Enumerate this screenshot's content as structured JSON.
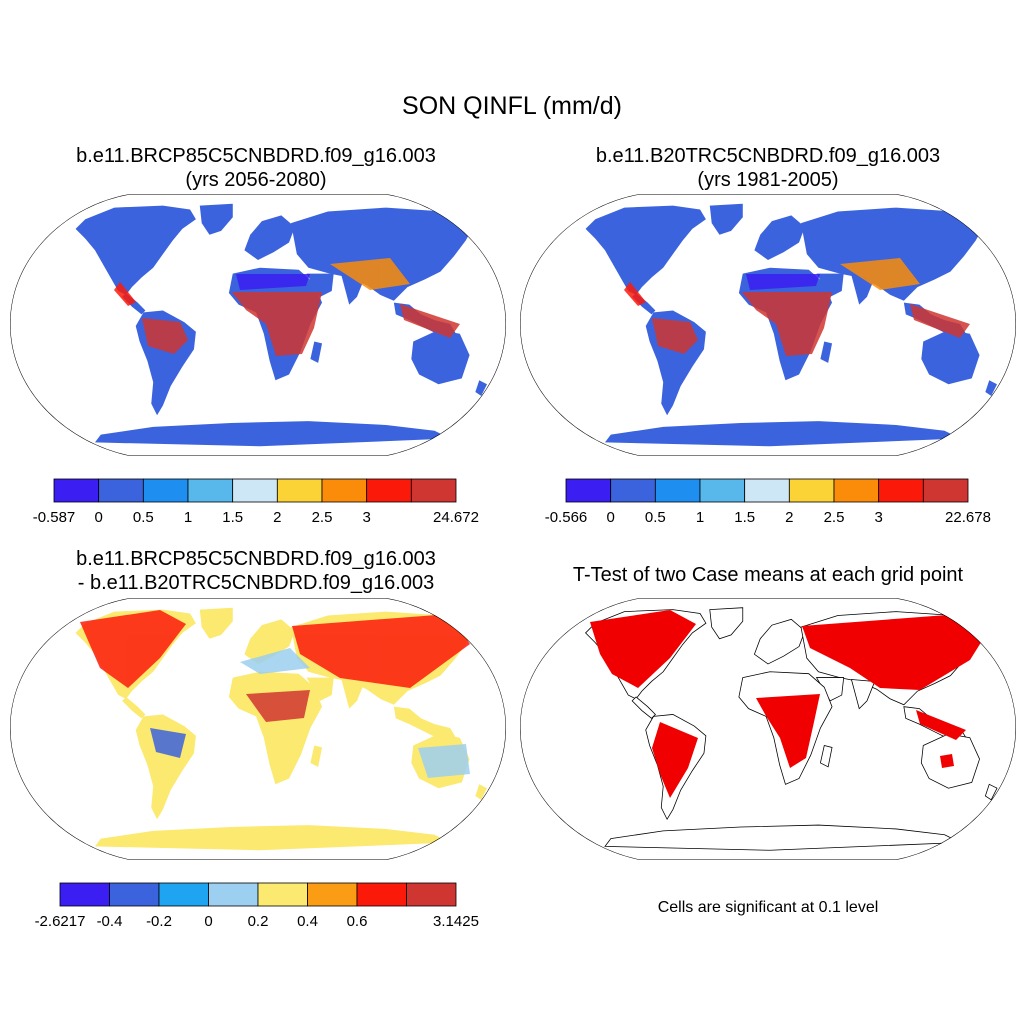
{
  "main_title": "SON QINFL (mm/d)",
  "panels": [
    {
      "title_lines": [
        "b.e11.BRCP85C5CNBDRD.f09_g16.003",
        "(yrs 2056-2080)"
      ],
      "colorbar": {
        "labels": [
          "-0.587",
          "0",
          "0.5",
          "1",
          "1.5",
          "2",
          "2.5",
          "3",
          "24.672"
        ],
        "colors": [
          "#3a1ef2",
          "#3b63dd",
          "#1e8ef0",
          "#58b8ec",
          "#cde7f7",
          "#fcd336",
          "#fb8c09",
          "#fb1a0a",
          "#d03631"
        ]
      }
    },
    {
      "title_lines": [
        "b.e11.B20TRC5CNBDRD.f09_g16.003",
        "(yrs 1981-2005)"
      ],
      "colorbar": {
        "labels": [
          "-0.566",
          "0",
          "0.5",
          "1",
          "1.5",
          "2",
          "2.5",
          "3",
          "22.678"
        ],
        "colors": [
          "#3a1ef2",
          "#3b63dd",
          "#1e8ef0",
          "#58b8ec",
          "#cde7f7",
          "#fcd336",
          "#fb8c09",
          "#fb1a0a",
          "#d03631"
        ]
      }
    },
    {
      "title_lines": [
        "b.e11.BRCP85C5CNBDRD.f09_g16.003",
        "- b.e11.B20TRC5CNBDRD.f09_g16.003"
      ],
      "colorbar": {
        "labels": [
          "-2.6217",
          "-0.4",
          "-0.2",
          "0",
          "0.2",
          "0.4",
          "0.6",
          "3.1425"
        ],
        "colors": [
          "#3a1ef2",
          "#3b63dd",
          "#1ea4f0",
          "#9ccff0",
          "#fbe970",
          "#fb9d14",
          "#fb1a0a",
          "#d03631"
        ]
      }
    },
    {
      "title_lines": [
        "T-Test of two Case means at each grid point"
      ],
      "note": "Cells are significant at 0.1 level",
      "significant_color": "#f00000"
    }
  ]
}
